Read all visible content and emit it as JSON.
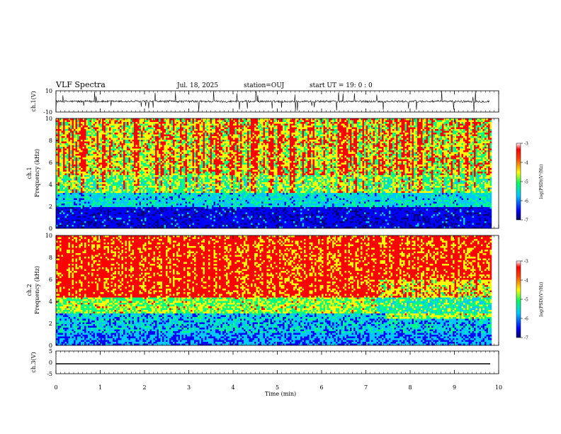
{
  "header": {
    "title": "VLF Spectra",
    "date": "Jul. 18, 2025",
    "station": "station=OUJ",
    "start": "start UT =  19: 0  : 0"
  },
  "chart_data": [
    {
      "type": "line",
      "name": "ch1-waveform",
      "ylabel": "ch.1(V)",
      "ylim": [
        -10,
        10
      ],
      "yticks": [
        "10",
        "-10"
      ],
      "xlim": [
        0,
        10
      ],
      "baseline": 0,
      "noise_amplitude": 2,
      "spike_amplitude": 10
    },
    {
      "type": "heatmap",
      "name": "ch1-spectrogram",
      "ylabel": "ch.1\nFrequency (kHz)",
      "ylim": [
        0,
        10
      ],
      "yticks": [
        "0",
        "2",
        "4",
        "6",
        "8",
        "10"
      ],
      "xlim": [
        0,
        10
      ],
      "data_end_min": 9.8,
      "colorbar": {
        "label": "log(PSD)(V²/Hz)",
        "range": [
          -7,
          -3
        ],
        "ticks": [
          "-3",
          "-4",
          "-5",
          "-6",
          "-7"
        ]
      },
      "colors": [
        "#000080",
        "#0000ff",
        "#00c8ff",
        "#00ff80",
        "#ffff00",
        "#ff0000"
      ]
    },
    {
      "type": "heatmap",
      "name": "ch2-spectrogram",
      "ylabel": "ch.2\nFrequency (kHz)",
      "ylim": [
        0,
        10
      ],
      "yticks": [
        "0",
        "2",
        "4",
        "6",
        "8",
        "10"
      ],
      "xlim": [
        0,
        10
      ],
      "data_end_min": 9.8,
      "colorbar": {
        "label": "log(PSD)(V²/Hz)",
        "range": [
          -7,
          -3
        ],
        "ticks": [
          "-3",
          "-4",
          "-5",
          "-6",
          "-7"
        ]
      },
      "colors": [
        "#000080",
        "#0000ff",
        "#00c8ff",
        "#00ff80",
        "#ffff00",
        "#ff0000"
      ]
    },
    {
      "type": "line",
      "name": "ch3-waveform",
      "ylabel": "ch.3(V)",
      "ylim": [
        -5,
        5
      ],
      "yticks": [
        "5",
        "0",
        "-5"
      ],
      "xlim": [
        0,
        10
      ],
      "baseline": -2
    }
  ],
  "xaxis": {
    "label": "Time (min)",
    "ticks": [
      "0",
      "1",
      "2",
      "3",
      "4",
      "5",
      "6",
      "7",
      "8",
      "9",
      "10"
    ]
  }
}
